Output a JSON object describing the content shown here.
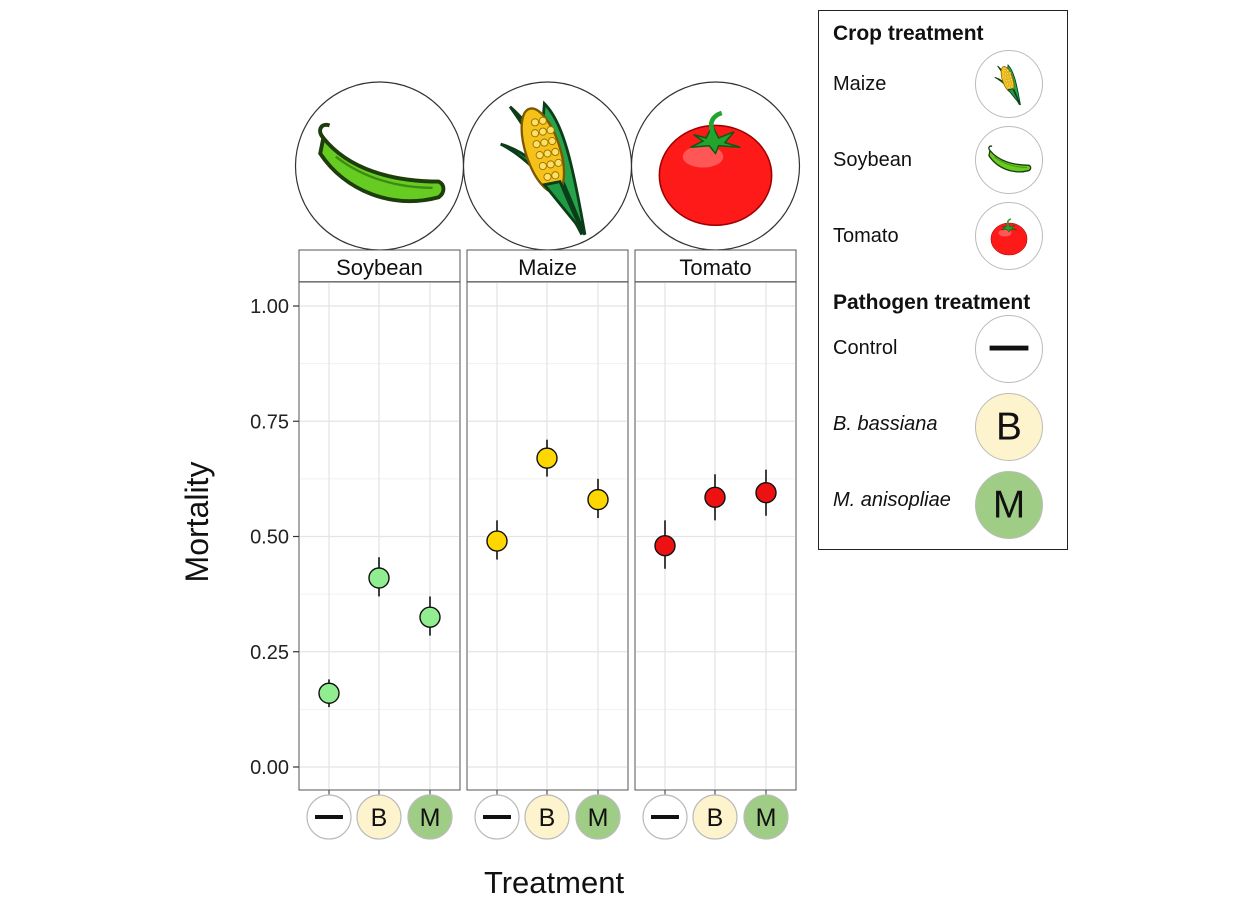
{
  "chart_data": {
    "type": "scatter",
    "ylabel": "Mortality",
    "xlabel": "Treatment",
    "ylim": [
      0,
      1.05
    ],
    "y_ticks": [
      "0.00",
      "0.25",
      "0.50",
      "0.75",
      "1.00"
    ],
    "y_tick_values": [
      0,
      0.25,
      0.5,
      0.75,
      1.0
    ],
    "categories": [
      "Control",
      "B. bassiana",
      "M. anisopliae"
    ],
    "category_tick_glyphs": [
      "—",
      "B",
      "M"
    ],
    "grid": true,
    "legend_placement": "right",
    "panels": [
      {
        "name": "Soybean",
        "color": "#90ee90",
        "values": [
          0.16,
          0.41,
          0.325
        ],
        "err_low": [
          0.13,
          0.37,
          0.285
        ],
        "err_high": [
          0.19,
          0.455,
          0.37
        ]
      },
      {
        "name": "Maize",
        "color": "#ffd700",
        "values": [
          0.49,
          0.67,
          0.58
        ],
        "err_low": [
          0.45,
          0.63,
          0.54
        ],
        "err_high": [
          0.535,
          0.71,
          0.625
        ]
      },
      {
        "name": "Tomato",
        "color": "#ee1111",
        "values": [
          0.48,
          0.585,
          0.595
        ],
        "err_low": [
          0.43,
          0.535,
          0.545
        ],
        "err_high": [
          0.535,
          0.635,
          0.645
        ]
      }
    ]
  },
  "legend": {
    "crop_title": "Crop treatment",
    "crops": [
      {
        "label": "Maize",
        "icon": "corn-icon"
      },
      {
        "label": "Soybean",
        "icon": "pea-pod-icon"
      },
      {
        "label": "Tomato",
        "icon": "tomato-icon"
      }
    ],
    "pathogen_title": "Pathogen treatment",
    "pathogens": [
      {
        "label": "Control",
        "glyph": "—",
        "fill": "#ffffff",
        "icon": "dash-icon"
      },
      {
        "label": "B. bassiana",
        "glyph": "B",
        "fill": "#fdf3cc",
        "icon": "letter-b-icon"
      },
      {
        "label": "M. anisopliae",
        "glyph": "M",
        "fill": "#9fcd86",
        "icon": "letter-m-icon"
      }
    ]
  },
  "colors": {
    "control_fill": "#ffffff",
    "b_fill": "#fdf3cc",
    "m_fill": "#9fcd86",
    "soybean": "#90ee90",
    "maize": "#ffd700",
    "tomato": "#ee1111"
  }
}
